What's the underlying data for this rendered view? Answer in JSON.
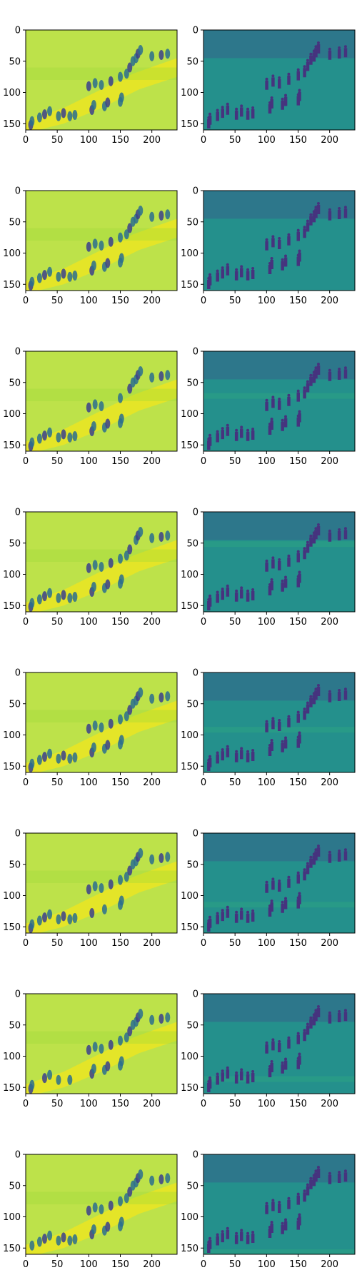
{
  "figure": {
    "rows": 8,
    "cols": 2
  },
  "chart_data": {
    "type": "heatmap",
    "colormap": "viridis",
    "xlim": [
      0,
      240
    ],
    "ylim": [
      160,
      0
    ],
    "x_ticks": [
      "0",
      "50",
      "100",
      "150",
      "200"
    ],
    "x_tick_values": [
      0,
      50,
      100,
      150,
      200
    ],
    "y_ticks": [
      "0",
      "50",
      "100",
      "150"
    ],
    "y_tick_values": [
      0,
      50,
      100,
      150
    ],
    "grid": false,
    "panels": [
      {
        "row": 1,
        "col": 1,
        "title": "",
        "content": "reconstructed feature map (smooth, yellow-green)"
      },
      {
        "row": 1,
        "col": 2,
        "title": "",
        "content": "frame (dark teal, pedestrians on slope)"
      },
      {
        "row": 2,
        "col": 1,
        "title": "",
        "content": "reconstructed feature map"
      },
      {
        "row": 2,
        "col": 2,
        "title": "",
        "content": "frame"
      },
      {
        "row": 3,
        "col": 1,
        "title": "",
        "content": "reconstructed feature map"
      },
      {
        "row": 3,
        "col": 2,
        "title": "",
        "content": "frame"
      },
      {
        "row": 4,
        "col": 1,
        "title": "",
        "content": "reconstructed feature map"
      },
      {
        "row": 4,
        "col": 2,
        "title": "",
        "content": "frame"
      },
      {
        "row": 5,
        "col": 1,
        "title": "",
        "content": "reconstructed feature map"
      },
      {
        "row": 5,
        "col": 2,
        "title": "",
        "content": "frame"
      },
      {
        "row": 6,
        "col": 1,
        "title": "",
        "content": "reconstructed feature map"
      },
      {
        "row": 6,
        "col": 2,
        "title": "",
        "content": "frame"
      },
      {
        "row": 7,
        "col": 1,
        "title": "",
        "content": "reconstructed feature map"
      },
      {
        "row": 7,
        "col": 2,
        "title": "",
        "content": "frame"
      },
      {
        "row": 8,
        "col": 1,
        "title": "",
        "content": "reconstructed feature map"
      },
      {
        "row": 8,
        "col": 2,
        "title": "",
        "content": "frame"
      }
    ]
  },
  "colors": {
    "left_bg": "#bde24a",
    "left_bright": "#f2e61e",
    "left_band": "#9fda3a",
    "left_blob": "#2c6f8e",
    "left_blob_dark": "#3b3f8c",
    "right_bg": "#24908c",
    "right_dark": "#3e4a89",
    "right_person": "#46337e",
    "right_light": "#35b779"
  }
}
